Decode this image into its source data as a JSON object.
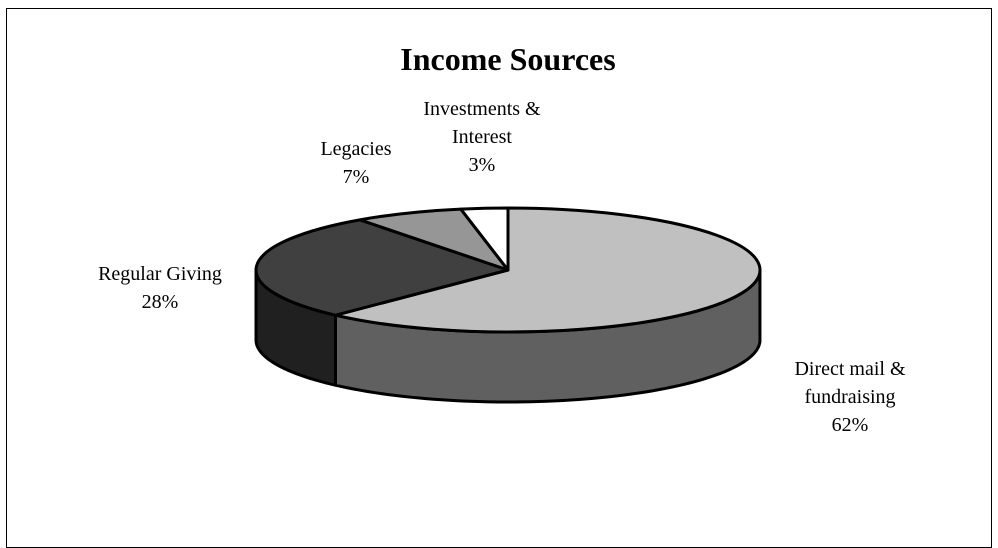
{
  "chart_data": {
    "type": "pie",
    "title": "Income Sources",
    "slices": [
      {
        "name_lines": [
          "Direct mail &",
          "fundraising"
        ],
        "pct_label": "62%",
        "value": 62,
        "color": "#c0c0c0",
        "side_color": "#606060"
      },
      {
        "name_lines": [
          "Regular Giving"
        ],
        "pct_label": "28%",
        "value": 28,
        "color": "#404040",
        "side_color": "#202020"
      },
      {
        "name_lines": [
          "Legacies"
        ],
        "pct_label": "7%",
        "value": 7,
        "color": "#969696",
        "side_color": "#4a4a4a"
      },
      {
        "name_lines": [
          "Investments &",
          "Interest"
        ],
        "pct_label": "3%",
        "value": 3,
        "color": "#ffffff",
        "side_color": "#7f7f7f"
      }
    ],
    "start_angle_deg": 90,
    "direction": "clockwise",
    "style": "3d",
    "legend": "none"
  }
}
